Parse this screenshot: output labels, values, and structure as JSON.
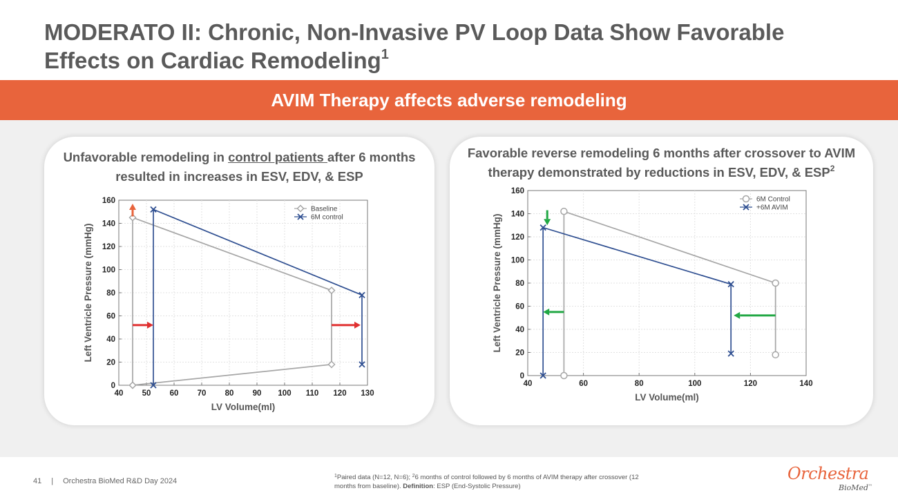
{
  "slide": {
    "title_main": "MODERATO II: Chronic, Non-Invasive PV Loop Data Show Favorable Effects on Cardiac Remodeling",
    "title_sup": "1",
    "banner": "AVIM Therapy affects adverse remodeling"
  },
  "left_card": {
    "title_before": "Unfavorable remodeling in ",
    "title_underlined": "control patients ",
    "title_after": "after 6 months resulted in increases in ESV, EDV, & ESP"
  },
  "right_card": {
    "title_main": "Favorable reverse remodeling 6 months after crossover to AVIM therapy demonstrated by reductions in ESV, EDV, & ESP",
    "title_sup": "2"
  },
  "footer": {
    "page_number": "41",
    "separator": "|",
    "event": "Orchestra BioMed R&D Day 2024",
    "footnote_sup1": "1",
    "footnote_part1": "Paired data (N=12, N=6); ",
    "footnote_sup2": "2",
    "footnote_part2": "6 months of control followed by 6 months of AVIM therapy after crossover (12 months from baseline). ",
    "footnote_def_label": "Definition",
    "footnote_def_text": ": ESP (End-Systolic Pressure)",
    "logo_main": "Orchestra",
    "logo_sub": "BioMed",
    "logo_tm": "™"
  },
  "colors": {
    "accent": "#e8643c",
    "baseline_gray": "#a6a6a6",
    "series_blue": "#2f4f91",
    "arrow_red": "#e03030",
    "arrow_orange": "#e8643c",
    "arrow_green": "#22a845"
  },
  "chart_data": [
    {
      "type": "line",
      "title": "Unfavorable remodeling in control patients after 6 months resulted in increases in ESV, EDV, & ESP",
      "xlabel": "LV Volume(ml)",
      "ylabel": "Left Ventricle  Pressure (mmHg)",
      "xlim": [
        40,
        130
      ],
      "ylim": [
        0,
        160
      ],
      "xticks": [
        40,
        50,
        60,
        70,
        80,
        90,
        100,
        110,
        120,
        130
      ],
      "yticks": [
        0,
        20,
        40,
        60,
        80,
        100,
        120,
        140,
        160
      ],
      "legend_position": "top-right",
      "series": [
        {
          "name": "Baseline",
          "marker": "diamond",
          "color": "#a6a6a6",
          "x": [
            45,
            45,
            117,
            117,
            45
          ],
          "y": [
            0,
            145,
            82,
            18,
            0
          ]
        },
        {
          "name": "6M control",
          "marker": "x",
          "color": "#2f4f91",
          "x": [
            52.5,
            52.5,
            128,
            128
          ],
          "y": [
            0,
            152,
            78,
            18
          ]
        }
      ],
      "annotations": [
        {
          "type": "arrow",
          "color": "#e03030",
          "direction": "right",
          "x_from": 45,
          "x_to": 52.5,
          "y": 52
        },
        {
          "type": "arrow",
          "color": "#e03030",
          "direction": "right",
          "x_from": 117,
          "x_to": 127.5,
          "y": 52
        },
        {
          "type": "arrow",
          "color": "#e8643c",
          "direction": "up",
          "x": 45,
          "y_from": 146,
          "y_to": 157
        }
      ]
    },
    {
      "type": "line",
      "title": "Favorable reverse remodeling 6 months after crossover to AVIM therapy demonstrated by reductions in ESV, EDV, & ESP",
      "xlabel": "LV Volume(ml)",
      "ylabel": "Left Ventricle  Pressure (mmHg)",
      "xlim": [
        40,
        140
      ],
      "ylim": [
        0,
        160
      ],
      "xticks": [
        40,
        60,
        80,
        100,
        120,
        140
      ],
      "yticks": [
        0,
        20,
        40,
        60,
        80,
        100,
        120,
        140,
        160
      ],
      "legend_position": "top-right",
      "series": [
        {
          "name": "6M Control",
          "marker": "circle",
          "color": "#a6a6a6",
          "x": [
            53,
            53,
            129,
            129
          ],
          "y": [
            0,
            142,
            80,
            18
          ]
        },
        {
          "name": "+6M AVIM",
          "marker": "x",
          "color": "#2f4f91",
          "x": [
            45.5,
            45.5,
            113,
            113
          ],
          "y": [
            0,
            128,
            79,
            19
          ]
        }
      ],
      "annotations": [
        {
          "type": "arrow",
          "color": "#22a845",
          "direction": "left",
          "x_from": 53,
          "x_to": 45.5,
          "y": 55
        },
        {
          "type": "arrow",
          "color": "#22a845",
          "direction": "left",
          "x_from": 129,
          "x_to": 114,
          "y": 52
        },
        {
          "type": "arrow",
          "color": "#22a845",
          "direction": "down",
          "x": 47,
          "y_from": 143,
          "y_to": 130
        }
      ]
    }
  ]
}
